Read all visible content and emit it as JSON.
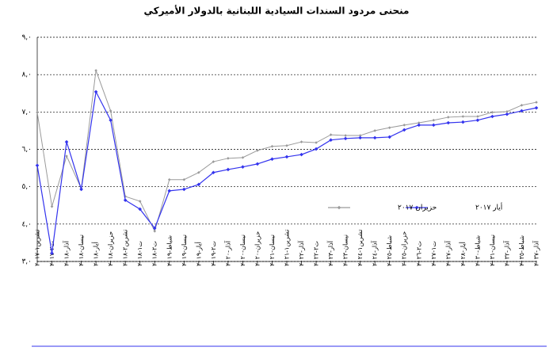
{
  "chart_data": {
    "type": "line",
    "title": "منحنى مردود السندات السيادية اللبنانية بالدولار الأميركي",
    "categories": [
      "تشرين١-٢٠١٧",
      "ت٢-٢٠١٧",
      "آذار-٢٠١٨",
      "نيسان-٢٠١٨",
      "أيار-٢٠١٨",
      "حزيران-٢٠١٨",
      "تشرين٢-٢٠١٨",
      "ت١-٢٠١٨",
      "ت٢-٢٠١٨",
      "شباط-٢٠١٩",
      "نيسان-٢٠١٩",
      "أيار-٢٠١٩",
      "ت٢-٢٠١٩",
      "آذار-٢٠٢٠",
      "نيسان-٢٠٢٠",
      "حزيران-٢٠٢٠",
      "نيسان-٢٠٢١",
      "تشرين١-٢٠٢١",
      "آذار-٢٠٢٢",
      "ت٢-٢٠٢٢",
      "آذار-٢٠٢٣",
      "نيسان-٢٠٢٣",
      "تشرين١-٢٠٢٤",
      "آذار-٢٠٢٤",
      "شباط-٢٠٢٥",
      "حزيران-٢٠٢٥",
      "ت٢-٢٠٢٦",
      "ت١-٢٠٢٧",
      "آذار-٢٠٢٧",
      "أيار-٢٠٢٨",
      "شباط-٢٠٣٠",
      "نيسان-٢٠٣١",
      "آذار-٢٠٣٢",
      "شباط-٢٠٣٥",
      "آذار-٢٠٣٧"
    ],
    "series": [
      {
        "name": "حزيران ٢٠١٧",
        "color": "#9a9a9a",
        "values": [
          6.99,
          4.47,
          5.82,
          4.95,
          8.11,
          7.03,
          4.74,
          4.61,
          3.81,
          5.19,
          5.19,
          5.38,
          5.67,
          5.76,
          5.78,
          5.97,
          6.08,
          6.1,
          6.2,
          6.18,
          6.39,
          6.37,
          6.37,
          6.5,
          6.58,
          6.65,
          6.71,
          6.78,
          6.86,
          6.88,
          6.88,
          6.99,
          7.01,
          7.18,
          7.26
        ]
      },
      {
        "name": "أيار ٢٠١٧",
        "color": "#3333ee",
        "values": [
          5.57,
          3.22,
          6.2,
          4.93,
          7.54,
          6.78,
          4.64,
          4.4,
          3.89,
          4.89,
          4.93,
          5.06,
          5.38,
          5.46,
          5.53,
          5.61,
          5.74,
          5.8,
          5.86,
          6.01,
          6.25,
          6.29,
          6.31,
          6.31,
          6.33,
          6.52,
          6.65,
          6.65,
          6.71,
          6.73,
          6.78,
          6.88,
          6.94,
          7.03,
          7.11
        ]
      }
    ],
    "ylim": [
      3,
      9
    ],
    "yticks": [
      {
        "value": 3,
        "label": "٣,٠"
      },
      {
        "value": 4,
        "label": "٤,٠"
      },
      {
        "value": 5,
        "label": "٥,٠"
      },
      {
        "value": 6,
        "label": "٦,٠"
      },
      {
        "value": 7,
        "label": "٧,٠"
      },
      {
        "value": 8,
        "label": "٨,٠"
      },
      {
        "value": 9,
        "label": "٩,٠"
      }
    ],
    "grid": true,
    "legend": "inside"
  }
}
